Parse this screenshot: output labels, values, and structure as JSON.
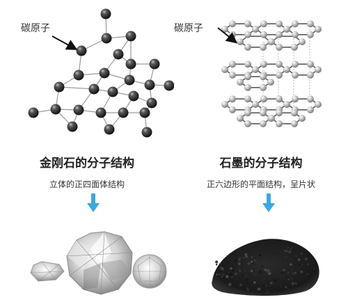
{
  "colors": {
    "arrow_blue": "#3ba8e2",
    "diamond_atom": "#3a3a3a",
    "graphite_atom": "#b8b8b8",
    "bond": "#9a9a9a"
  },
  "diamond": {
    "atom_label": "碳原子",
    "title": "金刚石的分子结构",
    "subtitle": "立体的正四面体结构",
    "image": "diamond-gemstones"
  },
  "graphite": {
    "atom_label": "碳原子",
    "title": "石墨的分子结构",
    "subtitle": "正六边形的平面结构，呈片状",
    "image": "graphite-powder"
  }
}
